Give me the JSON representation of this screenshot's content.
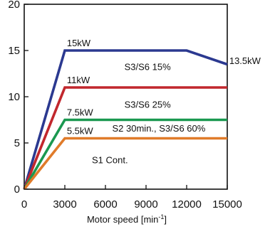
{
  "chart_data": {
    "type": "line",
    "xlabel": "Motor speed [min",
    "xlabel_sup": "-1",
    "xlabel_end": "]",
    "ylabel": "",
    "xlim": [
      0,
      15000
    ],
    "ylim": [
      0,
      20
    ],
    "xticks": [
      0,
      3000,
      6000,
      9000,
      12000,
      15000
    ],
    "xtick_labels": [
      "0",
      "3000",
      "6000",
      "9000",
      "12000",
      "15000"
    ],
    "yticks": [
      0,
      5,
      10,
      15,
      20
    ],
    "ytick_labels": [
      "0",
      "5",
      "10",
      "15",
      "20"
    ],
    "grid": false,
    "series": [
      {
        "name": "S3/S6 15%",
        "color": "#2b3990",
        "x": [
          0,
          3000,
          12000,
          15000
        ],
        "y": [
          0,
          15,
          15,
          13.5
        ]
      },
      {
        "name": "S3/S6 25%",
        "color": "#c1272d",
        "x": [
          0,
          3000,
          15000
        ],
        "y": [
          0,
          11,
          11
        ]
      },
      {
        "name": "S2 30min., S3/S6 60%",
        "color": "#1a9850",
        "x": [
          0,
          3000,
          15000
        ],
        "y": [
          0,
          7.5,
          7.5
        ]
      },
      {
        "name": "S1 Cont.",
        "color": "#e07b2a",
        "x": [
          0,
          3000,
          15000
        ],
        "y": [
          0,
          5.5,
          5.5
        ]
      }
    ],
    "annotations": [
      {
        "text": "15kW",
        "x": 3150,
        "y": 15.45
      },
      {
        "text": "11kW",
        "x": 3150,
        "y": 11.45
      },
      {
        "text": "7.5kW",
        "x": 3150,
        "y": 7.95
      },
      {
        "text": "5.5kW",
        "x": 3150,
        "y": 5.95
      },
      {
        "text": "13.5kW",
        "x": 15150,
        "y": 13.55
      },
      {
        "text": "S3/S6 15%",
        "x": 7400,
        "y": 12.9
      },
      {
        "text": "S3/S6 25%",
        "x": 7400,
        "y": 8.8
      },
      {
        "text": "S2 30min., S3/S6 60%",
        "x": 6500,
        "y": 6.25
      },
      {
        "text": "S1 Cont.",
        "x": 5000,
        "y": 2.8
      }
    ]
  }
}
